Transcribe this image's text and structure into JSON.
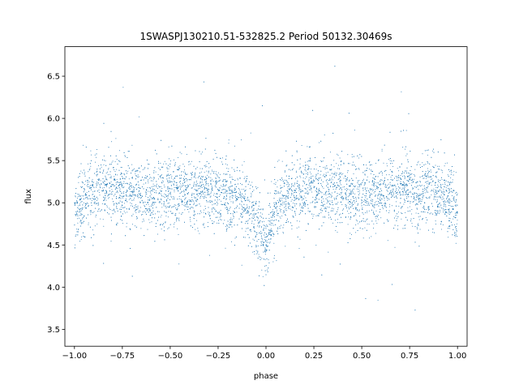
{
  "chart_data": {
    "type": "scatter",
    "title": "1SWASPJ130210.51-532825.2 Period 50132.30469s",
    "xlabel": "phase",
    "ylabel": "flux",
    "xlim": [
      -1.05,
      1.05
    ],
    "ylim": [
      3.3,
      6.85
    ],
    "xticks": [
      -1.0,
      -0.75,
      -0.5,
      -0.25,
      0.0,
      0.25,
      0.5,
      0.75,
      1.0
    ],
    "xtick_labels": [
      "−1.00",
      "−0.75",
      "−0.50",
      "−0.25",
      "0.00",
      "0.25",
      "0.50",
      "0.75",
      "1.00"
    ],
    "yticks": [
      3.5,
      4.0,
      4.5,
      5.0,
      5.5,
      6.0,
      6.5
    ],
    "ytick_labels": [
      "3.5",
      "4.0",
      "4.5",
      "5.0",
      "5.5",
      "6.0",
      "6.5"
    ],
    "grid": false,
    "point_color": "#1f77b4",
    "series": [
      {
        "x": [
          -1.0,
          -0.95,
          -0.9,
          -0.85,
          -0.8,
          -0.75,
          -0.7,
          -0.65,
          -0.6,
          -0.55,
          -0.5,
          -0.45,
          -0.4,
          -0.35,
          -0.3,
          -0.25,
          -0.2,
          -0.15,
          -0.1,
          -0.05,
          0.0,
          0.05,
          0.1,
          0.15,
          0.2,
          0.25,
          0.3,
          0.35,
          0.4,
          0.45,
          0.5,
          0.55,
          0.6,
          0.65,
          0.7,
          0.75,
          0.8,
          0.85,
          0.9,
          0.95,
          1.0
        ],
        "y": [
          4.85,
          5.05,
          5.12,
          5.15,
          5.17,
          5.15,
          5.12,
          5.12,
          5.1,
          5.12,
          5.12,
          5.12,
          5.12,
          5.15,
          5.12,
          5.12,
          5.08,
          5.05,
          4.95,
          4.75,
          4.55,
          4.9,
          5.05,
          5.12,
          5.15,
          5.17,
          5.15,
          5.12,
          5.12,
          5.1,
          5.1,
          5.12,
          5.12,
          5.15,
          5.15,
          5.15,
          5.15,
          5.12,
          5.1,
          5.05,
          4.85
        ]
      }
    ]
  }
}
